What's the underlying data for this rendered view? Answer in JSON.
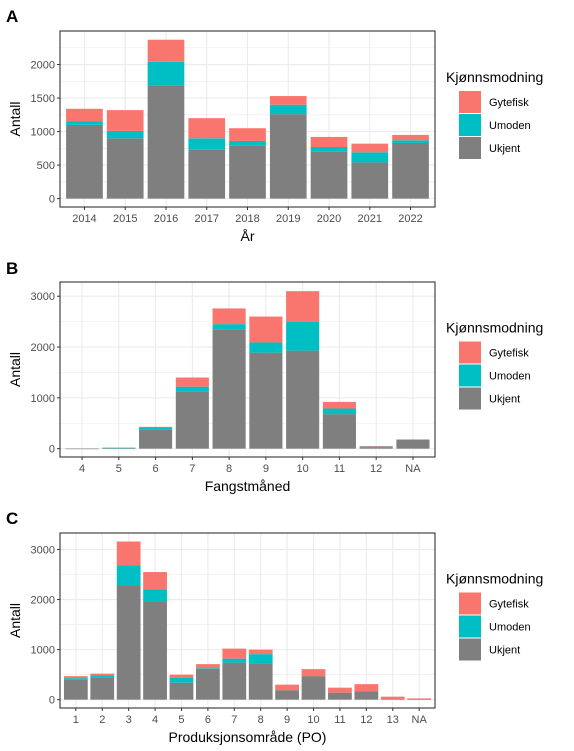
{
  "legend": {
    "title": "Kjønnsmodning",
    "items": [
      {
        "label": "Gytefisk",
        "color": "#F8766D"
      },
      {
        "label": "Umoden",
        "color": "#00BFC4"
      },
      {
        "label": "Ukjent",
        "color": "#7F7F7F"
      }
    ]
  },
  "chart_data": [
    {
      "panel": "A",
      "type": "bar",
      "stacked": true,
      "xlabel": "År",
      "ylabel": "Antall",
      "ylim": [
        0,
        2500
      ],
      "yticks": [
        0,
        500,
        1000,
        1500,
        2000
      ],
      "grid": true,
      "legend_position": "right",
      "categories": [
        "2014",
        "2015",
        "2016",
        "2017",
        "2018",
        "2019",
        "2020",
        "2021",
        "2022"
      ],
      "series": [
        {
          "name": "Ukjent",
          "values": [
            1100,
            900,
            1690,
            730,
            790,
            1260,
            700,
            540,
            830
          ]
        },
        {
          "name": "Umoden",
          "values": [
            50,
            110,
            350,
            170,
            70,
            140,
            70,
            150,
            40
          ]
        },
        {
          "name": "Gytefisk",
          "values": [
            190,
            310,
            330,
            300,
            190,
            130,
            150,
            130,
            80
          ]
        }
      ]
    },
    {
      "panel": "B",
      "type": "bar",
      "stacked": true,
      "xlabel": "Fangstmåned",
      "ylabel": "Antall",
      "ylim": [
        0,
        3280
      ],
      "yticks": [
        0,
        1000,
        2000,
        3000
      ],
      "grid": true,
      "legend_position": "right",
      "categories": [
        "4",
        "5",
        "6",
        "7",
        "8",
        "9",
        "10",
        "11",
        "12",
        "NA"
      ],
      "series": [
        {
          "name": "Ukjent",
          "values": [
            2,
            8,
            370,
            1130,
            2350,
            1890,
            1930,
            680,
            30,
            180
          ]
        },
        {
          "name": "Umoden",
          "values": [
            0,
            12,
            50,
            90,
            100,
            200,
            570,
            110,
            15,
            0
          ]
        },
        {
          "name": "Gytefisk",
          "values": [
            0,
            0,
            10,
            180,
            310,
            510,
            600,
            130,
            5,
            0
          ]
        }
      ]
    },
    {
      "panel": "C",
      "type": "bar",
      "stacked": true,
      "xlabel": "Produksjonsområde (PO)",
      "ylabel": "Antall",
      "ylim": [
        0,
        3330
      ],
      "yticks": [
        0,
        1000,
        2000,
        3000
      ],
      "grid": true,
      "legend_position": "right",
      "categories": [
        "1",
        "2",
        "3",
        "4",
        "5",
        "6",
        "7",
        "8",
        "9",
        "10",
        "11",
        "12",
        "13",
        "NA"
      ],
      "series": [
        {
          "name": "Ukjent",
          "values": [
            400,
            440,
            2290,
            1970,
            340,
            620,
            740,
            730,
            190,
            470,
            140,
            170,
            10,
            20
          ]
        },
        {
          "name": "Umoden",
          "values": [
            30,
            50,
            390,
            230,
            100,
            10,
            80,
            180,
            0,
            0,
            0,
            0,
            0,
            0
          ]
        },
        {
          "name": "Gytefisk",
          "values": [
            40,
            30,
            480,
            350,
            60,
            80,
            200,
            90,
            110,
            140,
            100,
            140,
            50,
            5
          ]
        }
      ]
    }
  ]
}
